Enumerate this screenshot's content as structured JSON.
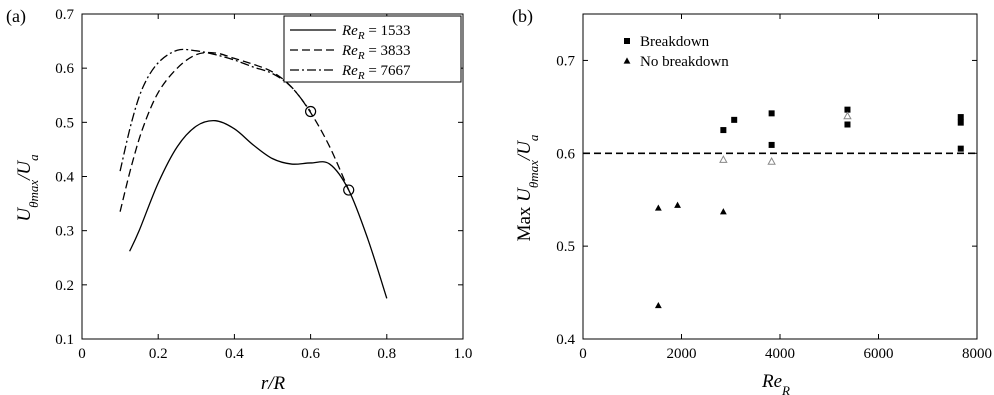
{
  "chart_data": [
    {
      "panel_label": "(a)",
      "type": "line",
      "xlabel": "r/R",
      "ylabel": "Uθmax/Ua",
      "xlim": [
        0,
        1.0
      ],
      "ylim": [
        0.1,
        0.7
      ],
      "x_ticks": [
        "0",
        "0.2",
        "0.4",
        "0.6",
        "0.8",
        "1.0"
      ],
      "y_ticks": [
        "0.1",
        "0.2",
        "0.3",
        "0.4",
        "0.5",
        "0.6",
        "0.7"
      ],
      "legend_position": "top-right",
      "series": [
        {
          "name": "Re_R = 1533",
          "legend_label": "Re",
          "legend_sub": "R",
          "legend_value": " = 1533",
          "style": "solid",
          "x": [
            0.125,
            0.15,
            0.2,
            0.25,
            0.3,
            0.35,
            0.4,
            0.45,
            0.5,
            0.55,
            0.6,
            0.65,
            0.7,
            0.75,
            0.8
          ],
          "y": [
            0.262,
            0.3,
            0.388,
            0.455,
            0.493,
            0.503,
            0.488,
            0.458,
            0.433,
            0.423,
            0.425,
            0.423,
            0.375,
            0.285,
            0.175
          ],
          "marker_point": {
            "x": 0.7,
            "y": 0.375
          }
        },
        {
          "name": "Re_R = 3833",
          "legend_label": "Re",
          "legend_sub": "R",
          "legend_value": " = 3833",
          "style": "dashed",
          "x": [
            0.1,
            0.13,
            0.16,
            0.2,
            0.25,
            0.3,
            0.35,
            0.4,
            0.45,
            0.5,
            0.55,
            0.6,
            0.65,
            0.7
          ],
          "y": [
            0.335,
            0.42,
            0.49,
            0.555,
            0.6,
            0.625,
            0.628,
            0.618,
            0.607,
            0.593,
            0.565,
            0.518,
            0.455,
            0.375
          ]
        },
        {
          "name": "Re_R = 7667",
          "legend_label": "Re",
          "legend_sub": "R",
          "legend_value": " = 7667",
          "style": "dashdot",
          "x": [
            0.1,
            0.13,
            0.16,
            0.2,
            0.25,
            0.3,
            0.35,
            0.4,
            0.45,
            0.5,
            0.55,
            0.6
          ],
          "y": [
            0.41,
            0.5,
            0.565,
            0.61,
            0.633,
            0.632,
            0.625,
            0.615,
            0.602,
            0.59,
            0.565,
            0.52
          ],
          "marker_point": {
            "x": 0.6,
            "y": 0.52
          }
        }
      ]
    },
    {
      "panel_label": "(b)",
      "type": "scatter",
      "xlabel": "Re_R",
      "ylabel": "Max Uθmax/Ua",
      "xlim": [
        0,
        8000
      ],
      "ylim": [
        0.4,
        0.75
      ],
      "x_ticks": [
        "0",
        "2000",
        "4000",
        "6000",
        "8000"
      ],
      "y_ticks": [
        "0.4",
        "0.5",
        "0.6",
        "0.7"
      ],
      "reference_line_y": 0.6,
      "legend_position": "top-left",
      "series": [
        {
          "name": "Breakdown",
          "marker": "square",
          "points": [
            {
              "x": 2850,
              "y": 0.625
            },
            {
              "x": 3070,
              "y": 0.636
            },
            {
              "x": 3830,
              "y": 0.643
            },
            {
              "x": 3830,
              "y": 0.609
            },
            {
              "x": 5370,
              "y": 0.647
            },
            {
              "x": 5370,
              "y": 0.631
            },
            {
              "x": 7670,
              "y": 0.639
            },
            {
              "x": 7670,
              "y": 0.633
            },
            {
              "x": 7670,
              "y": 0.605
            }
          ]
        },
        {
          "name": "No breakdown",
          "marker": "triangle",
          "points": [
            {
              "x": 1530,
              "y": 0.541
            },
            {
              "x": 1530,
              "y": 0.436
            },
            {
              "x": 1920,
              "y": 0.544
            },
            {
              "x": 2850,
              "y": 0.537
            }
          ]
        },
        {
          "name": "",
          "marker": "triangle-open",
          "points": [
            {
              "x": 2850,
              "y": 0.593
            },
            {
              "x": 3830,
              "y": 0.591
            },
            {
              "x": 5370,
              "y": 0.64
            }
          ]
        }
      ]
    }
  ]
}
